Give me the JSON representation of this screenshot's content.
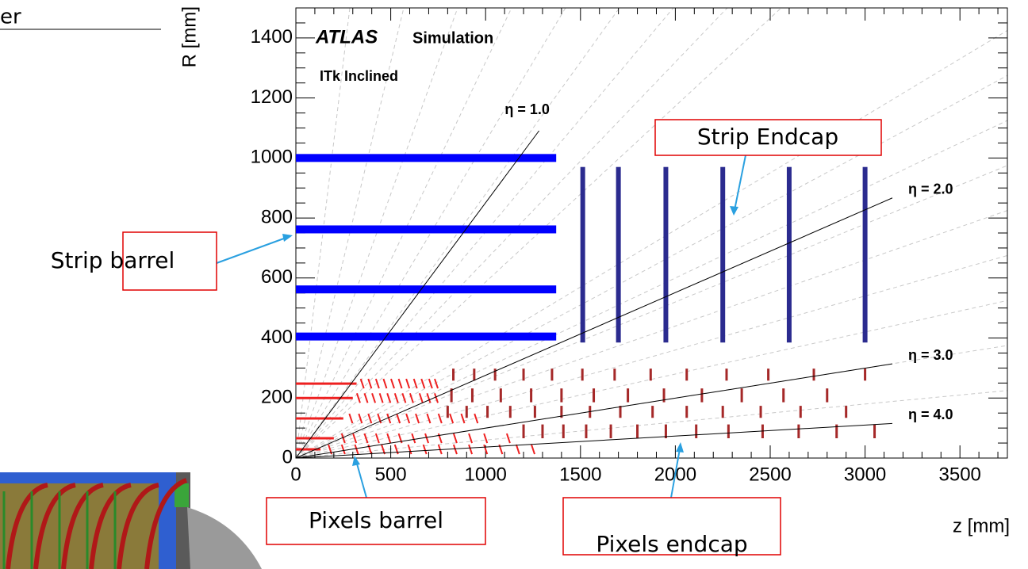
{
  "header_fragment": "er",
  "chart_data": {
    "type": "layout",
    "experiment": "ATLAS",
    "label": "Simulation",
    "subtitle": "ITk Inclined",
    "x_label": "z [mm]",
    "y_label": "R [mm]",
    "xlim": [
      0,
      3750
    ],
    "ylim": [
      0,
      1500
    ],
    "xticks": [
      0,
      500,
      1000,
      1500,
      2000,
      2500,
      3000,
      3500
    ],
    "yticks": [
      0,
      200,
      400,
      600,
      800,
      1000,
      1200,
      1400
    ],
    "eta_lines": {
      "values": [
        1.0,
        2.0,
        3.0,
        4.0
      ],
      "value_labels": [
        "η = 1.0",
        "η = 2.0",
        "η = 3.0",
        "η = 4.0"
      ],
      "color": "#000000"
    },
    "strip_barrel": {
      "radii": [
        405,
        562,
        762,
        1000
      ],
      "z_range": [
        0,
        1372
      ],
      "color": "#0000ff"
    },
    "strip_endcap": {
      "z": [
        1512,
        1700,
        1950,
        2250,
        2600,
        3000
      ],
      "r_range": [
        385,
        970
      ],
      "color": "#2b2b8f"
    },
    "pixel_barrel": {
      "radii": [
        29,
        66,
        132,
        200,
        248
      ],
      "flat_z_max": [
        130,
        200,
        250,
        300,
        320
      ],
      "inclined_z": [
        [
          180,
          250,
          320,
          390,
          460,
          530,
          600,
          680,
          760,
          840,
          920,
          1000,
          1080,
          1170,
          1250
        ],
        [
          250,
          310,
          370,
          430,
          490,
          550,
          620,
          690,
          760,
          840,
          920,
          1000,
          1120
        ],
        [
          290,
          340,
          390,
          440,
          490,
          540,
          590,
          640,
          700,
          760,
          820,
          880,
          950
        ],
        [
          330,
          370,
          410,
          450,
          490,
          530,
          570,
          610,
          660,
          700,
          740
        ],
        [
          350,
          390,
          430,
          470,
          510,
          550,
          590,
          630,
          670,
          710,
          740
        ]
      ],
      "color": "#ee2020"
    },
    "pixel_endcap": {
      "rings": [
        {
          "r_range": [
            258,
            298
          ],
          "z": [
            830,
            940,
            1050,
            1200,
            1350,
            1510,
            1680,
            1870,
            2060,
            2270,
            2490,
            2730,
            3000
          ]
        },
        {
          "r_range": [
            186,
            232
          ],
          "z": [
            820,
            930,
            1080,
            1240,
            1400,
            1570,
            1750,
            1940,
            2140,
            2350,
            2570,
            2800
          ]
        },
        {
          "r_range": [
            134,
            174
          ],
          "z": [
            800,
            900,
            1010,
            1130,
            1260,
            1400,
            1550,
            1710,
            1880,
            2060,
            2250,
            2450,
            2660,
            2900
          ]
        },
        {
          "r_range": [
            66,
            112
          ],
          "z": [
            1200,
            1300,
            1410,
            1530,
            1660,
            1800,
            1950,
            2110,
            2280,
            2460,
            2650,
            2850,
            3050
          ]
        }
      ],
      "color": "#a52828"
    }
  },
  "annotations": [
    {
      "label": "Strip Endcap"
    },
    {
      "label": "Strip barrel"
    },
    {
      "label": "Pixels barrel"
    },
    {
      "label": "Pixels endcap"
    }
  ]
}
